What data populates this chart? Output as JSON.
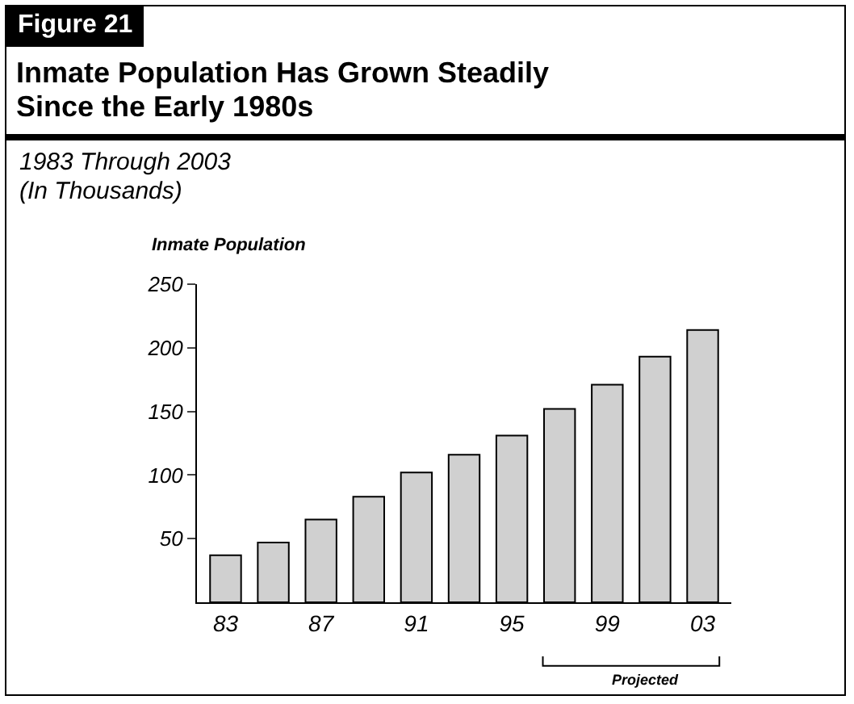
{
  "chart_data": {
    "type": "bar",
    "title": "Inmate Population Has Grown Steadily\nSince the Early 1980s",
    "subtitle": "1983 Through 2003\n(In Thousands)",
    "ylabel": "Inmate Population",
    "categories": [
      "83",
      null,
      "87",
      null,
      "91",
      null,
      "95",
      null,
      "99",
      null,
      "03"
    ],
    "values": [
      37,
      47,
      65,
      83,
      102,
      116,
      131,
      152,
      171,
      193,
      214
    ],
    "color": "#d0d0d0",
    "ylim": [
      0,
      250
    ],
    "yticks": [
      50,
      100,
      150,
      200,
      250
    ],
    "grid": false,
    "legend": false,
    "annotations": [
      "Figure 21",
      "Projected"
    ]
  }
}
